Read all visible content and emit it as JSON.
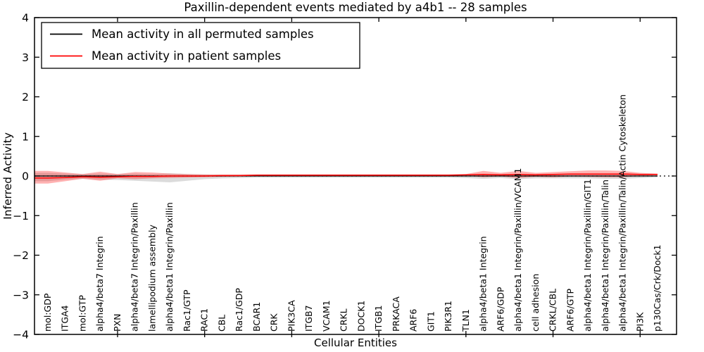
{
  "title": "Paxillin-dependent events mediated by a4b1 -- 28 samples",
  "axes": {
    "ylabel": "Inferred Activity",
    "xlabel": "Cellular Entities",
    "yticks": [
      "4",
      "3",
      "2",
      "1",
      "0",
      "−1",
      "−2",
      "−3",
      "−4"
    ],
    "ylim": [
      -4,
      4
    ]
  },
  "legend": {
    "items": [
      {
        "label": "Mean activity in all permuted samples",
        "color": "#000000"
      },
      {
        "label": "Mean activity in patient samples",
        "color": "#ff0000"
      }
    ],
    "position": "upper left"
  },
  "chart_data": {
    "type": "line",
    "title": "Paxillin-dependent events mediated by a4b1 -- 28 samples",
    "xlabel": "Cellular Entities",
    "ylabel": "Inferred Activity",
    "ylim": [
      -4,
      4
    ],
    "grid": false,
    "legend_position": "upper left",
    "zero_line": {
      "style": "dotted",
      "y": 0,
      "color": "#000000"
    },
    "x_major_tick_indices": [
      4,
      9,
      14,
      19,
      24,
      29,
      34
    ],
    "categories": [
      "mol:GDP",
      "ITGA4",
      "mol:GTP",
      "alpha4/beta7 Integrin",
      "PXN",
      "alpha4/beta7 Integrin/Paxillin",
      "lamellipodium assembly",
      "alpha4/beta1 Integrin/Paxillin",
      "Rac1/GTP",
      "RAC1",
      "CBL",
      "Rac1/GDP",
      "BCAR1",
      "CRK",
      "PIK3CA",
      "ITGB7",
      "VCAM1",
      "CRKL",
      "DOCK1",
      "ITGB1",
      "PRKACA",
      "ARF6",
      "GIT1",
      "PIK3R1",
      "TLN1",
      "alpha4/beta1 Integrin",
      "ARF6/GDP",
      "alpha4/beta1 Integrin/Paxillin/VCAM1",
      "cell adhesion",
      "CRKL/CBL",
      "ARF6/GTP",
      "alpha4/beta1 Integrin/Paxillin/GIT1",
      "alpha4/beta1 Integrin/Paxillin/Talin",
      "alpha4/beta1 Integrin/Paxillin/Talin/Actin Cytoskeleton",
      "PI3K",
      "p130Cas/Crk/Dock1"
    ],
    "series": [
      {
        "name": "Mean activity in all permuted samples",
        "color": "#000000",
        "band_color": "rgba(125,125,125,0.28)",
        "values": [
          0,
          0,
          0,
          0,
          0,
          0,
          0,
          0,
          0,
          0,
          0,
          0,
          0,
          0,
          0,
          0,
          0,
          0,
          0,
          0,
          0,
          0,
          0,
          0,
          0,
          0,
          0,
          0,
          0,
          0,
          0,
          0,
          0,
          0,
          0,
          0
        ],
        "band_upper": [
          0.08,
          0.06,
          0.05,
          0.06,
          0.05,
          0.06,
          0.05,
          0.07,
          0.05,
          0.04,
          0.03,
          0.03,
          0.03,
          0.03,
          0.03,
          0.03,
          0.03,
          0.03,
          0.03,
          0.03,
          0.03,
          0.03,
          0.03,
          0.03,
          0.03,
          0.04,
          0.03,
          0.05,
          0.04,
          0.04,
          0.04,
          0.05,
          0.05,
          0.05,
          0.03,
          0.02
        ],
        "band_lower": [
          -0.13,
          -0.09,
          -0.07,
          -0.09,
          -0.1,
          -0.12,
          -0.14,
          -0.16,
          -0.12,
          -0.08,
          -0.06,
          -0.05,
          -0.04,
          -0.04,
          -0.04,
          -0.04,
          -0.04,
          -0.04,
          -0.04,
          -0.04,
          -0.04,
          -0.04,
          -0.04,
          -0.04,
          -0.05,
          -0.07,
          -0.05,
          -0.08,
          -0.06,
          -0.06,
          -0.06,
          -0.06,
          -0.07,
          -0.07,
          -0.05,
          -0.03
        ]
      },
      {
        "name": "Mean activity in patient samples",
        "color": "#ff0000",
        "band_color": "rgba(255,0,0,0.30)",
        "values": [
          -0.05,
          -0.04,
          -0.02,
          -0.03,
          -0.02,
          -0.01,
          -0.01,
          0.0,
          0.0,
          0.0,
          0.01,
          0.01,
          0.02,
          0.02,
          0.02,
          0.02,
          0.02,
          0.02,
          0.02,
          0.02,
          0.02,
          0.02,
          0.02,
          0.02,
          0.03,
          0.04,
          0.03,
          0.04,
          0.03,
          0.04,
          0.05,
          0.05,
          0.05,
          0.05,
          0.04,
          0.04
        ],
        "band_upper": [
          0.13,
          0.09,
          0.05,
          0.11,
          0.05,
          0.1,
          0.09,
          0.06,
          0.05,
          0.04,
          0.04,
          0.04,
          0.04,
          0.04,
          0.04,
          0.04,
          0.04,
          0.04,
          0.04,
          0.04,
          0.04,
          0.04,
          0.04,
          0.04,
          0.05,
          0.13,
          0.08,
          0.13,
          0.08,
          0.1,
          0.12,
          0.14,
          0.14,
          0.13,
          0.08,
          0.06
        ],
        "band_lower": [
          -0.19,
          -0.13,
          -0.07,
          -0.12,
          -0.06,
          -0.08,
          -0.06,
          -0.05,
          -0.04,
          -0.03,
          -0.02,
          -0.01,
          0.0,
          0.0,
          0.0,
          0.0,
          0.0,
          0.0,
          0.0,
          0.0,
          0.0,
          0.0,
          0.0,
          0.0,
          0.01,
          -0.03,
          -0.01,
          -0.05,
          -0.02,
          -0.03,
          -0.01,
          -0.02,
          -0.03,
          -0.03,
          0.0,
          0.02
        ]
      }
    ]
  }
}
